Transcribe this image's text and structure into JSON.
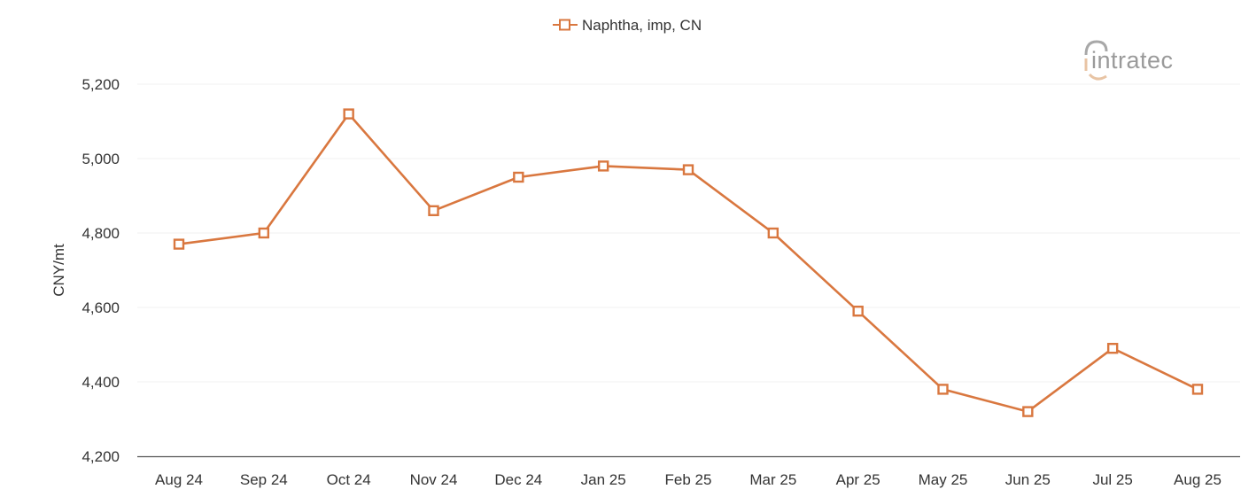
{
  "legend": {
    "label": "Naphtha, imp, CN",
    "marker": "hollow-square-line"
  },
  "logo": {
    "text": "intratec",
    "accent_color": "#e8c4a4",
    "text_color": "#9a9a9a"
  },
  "colors": {
    "series": "#d9773f",
    "grid": "#f0f0f0",
    "axis": "#555555",
    "text": "#333333"
  },
  "chart_data": {
    "type": "line",
    "title": "",
    "xlabel": "",
    "ylabel": "CNY/mt",
    "ylim": [
      4200,
      5200
    ],
    "yticks": [
      4200,
      4400,
      4600,
      4800,
      5000,
      5200
    ],
    "ytick_labels": [
      "4,200",
      "4,400",
      "4,600",
      "4,800",
      "5,000",
      "5,200"
    ],
    "grid": true,
    "legend_position": "top-center",
    "categories": [
      "Aug 24",
      "Sep 24",
      "Oct 24",
      "Nov 24",
      "Dec 24",
      "Jan 25",
      "Feb 25",
      "Mar 25",
      "Apr 25",
      "May 25",
      "Jun 25",
      "Jul 25",
      "Aug 25"
    ],
    "series": [
      {
        "name": "Naphtha, imp, CN",
        "color": "#d9773f",
        "marker": "square-hollow",
        "values": [
          4770,
          4800,
          5120,
          4860,
          4950,
          4980,
          4970,
          4800,
          4590,
          4380,
          4320,
          4490,
          4380
        ]
      }
    ]
  }
}
